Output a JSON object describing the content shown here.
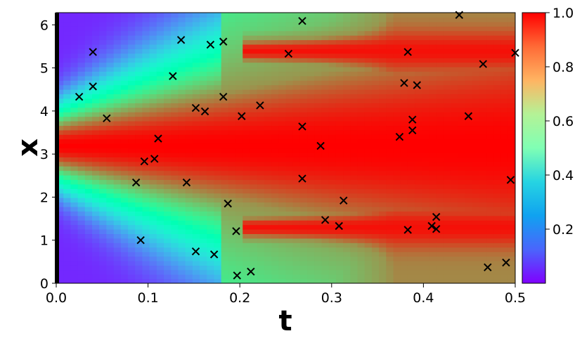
{
  "chart_data": {
    "type": "heatmap",
    "title": "",
    "xlabel": "t",
    "ylabel": "x",
    "xlim": [
      0,
      0.5
    ],
    "ylim": [
      0,
      6.283
    ],
    "x_ticks": [
      "0.0",
      "0.1",
      "0.2",
      "0.3",
      "0.4",
      "0.5"
    ],
    "x_tick_values": [
      0,
      0.1,
      0.2,
      0.3,
      0.4,
      0.5
    ],
    "y_ticks": [
      "0",
      "1",
      "2",
      "3",
      "4",
      "5",
      "6"
    ],
    "y_tick_values": [
      0,
      1,
      2,
      3,
      4,
      5,
      6
    ],
    "colorbar": {
      "range": [
        0,
        1.0
      ],
      "colormap": "rainbow",
      "ticks": [
        "0.2",
        "0.4",
        "0.6",
        "0.8",
        "1.0"
      ],
      "tick_values": [
        0.2,
        0.4,
        0.6,
        0.8,
        1.0
      ]
    },
    "heat_field": {
      "description_level": "approximate",
      "bands": [
        {
          "x_center": 3.2,
          "width": 0.45,
          "value": 1.0
        },
        {
          "x_center": 4.3,
          "width": 0.35,
          "value": 0.85
        },
        {
          "x_center": 2.6,
          "width": 0.35,
          "value": 0.82
        },
        {
          "x_center": 1.3,
          "width": 0.5,
          "value": 0.98
        },
        {
          "x_center": 5.4,
          "width": 0.5,
          "value": 0.98
        }
      ]
    },
    "markers": {
      "symbol": "x",
      "color": "#000000",
      "points": [
        [
          0.025,
          4.33
        ],
        [
          0.04,
          5.37
        ],
        [
          0.04,
          4.57
        ],
        [
          0.055,
          3.83
        ],
        [
          0.087,
          2.34
        ],
        [
          0.092,
          1.0
        ],
        [
          0.096,
          2.83
        ],
        [
          0.107,
          2.89
        ],
        [
          0.111,
          3.36
        ],
        [
          0.127,
          4.81
        ],
        [
          0.136,
          5.65
        ],
        [
          0.142,
          2.34
        ],
        [
          0.152,
          4.07
        ],
        [
          0.152,
          0.74
        ],
        [
          0.162,
          3.99
        ],
        [
          0.168,
          5.54
        ],
        [
          0.172,
          0.67
        ],
        [
          0.182,
          5.61
        ],
        [
          0.182,
          4.33
        ],
        [
          0.187,
          1.85
        ],
        [
          0.196,
          1.21
        ],
        [
          0.197,
          0.18
        ],
        [
          0.202,
          3.88
        ],
        [
          0.212,
          0.27
        ],
        [
          0.222,
          4.13
        ],
        [
          0.253,
          5.33
        ],
        [
          0.268,
          6.09
        ],
        [
          0.268,
          3.64
        ],
        [
          0.268,
          2.43
        ],
        [
          0.288,
          3.19
        ],
        [
          0.293,
          1.47
        ],
        [
          0.308,
          1.33
        ],
        [
          0.313,
          1.92
        ],
        [
          0.374,
          3.4
        ],
        [
          0.379,
          4.65
        ],
        [
          0.383,
          5.37
        ],
        [
          0.383,
          1.24
        ],
        [
          0.388,
          3.8
        ],
        [
          0.388,
          3.55
        ],
        [
          0.393,
          4.6
        ],
        [
          0.409,
          1.33
        ],
        [
          0.414,
          1.54
        ],
        [
          0.414,
          1.26
        ],
        [
          0.439,
          6.23
        ],
        [
          0.449,
          3.88
        ],
        [
          0.465,
          5.09
        ],
        [
          0.47,
          0.37
        ],
        [
          0.49,
          0.48
        ],
        [
          0.495,
          2.4
        ],
        [
          0.5,
          5.35
        ]
      ]
    }
  }
}
